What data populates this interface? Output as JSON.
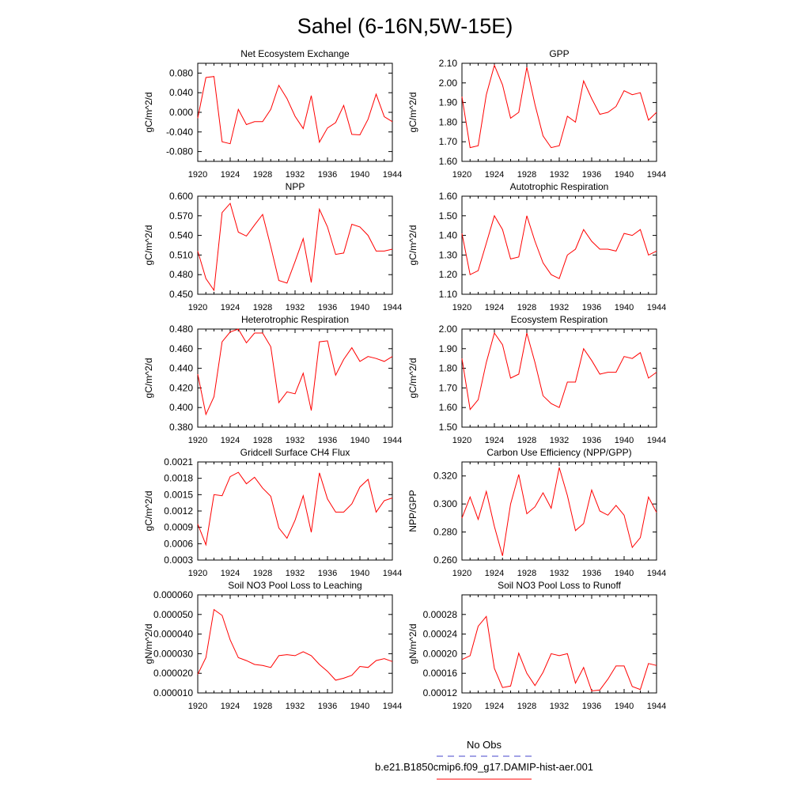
{
  "title": "Sahel (6-16N,5W-15E)",
  "legend": {
    "entries": [
      {
        "label": "No Obs",
        "color": "#4444cc",
        "dash": true
      },
      {
        "label": "b.e21.B1850cmip6.f09_g17.DAMIP-hist-aer.001",
        "color": "#ff0000",
        "dash": false
      }
    ],
    "position": "bottom-center"
  },
  "colors": {
    "series": "#ff0000",
    "axis": "#000000"
  },
  "chart_data": [
    {
      "type": "line",
      "title": "Net Ecosystem Exchange",
      "ylabel": "gC/m^2/d",
      "xlim": [
        1920,
        1944
      ],
      "ylim": [
        -0.1,
        0.1
      ],
      "xticks": [
        "1920",
        "1924",
        "1928",
        "1932",
        "1936",
        "1940",
        "1944"
      ],
      "yticks": [
        "-0.080",
        "-0.040",
        "0.000",
        "0.040",
        "0.080"
      ],
      "x": [
        1920,
        1921,
        1922,
        1923,
        1924,
        1925,
        1926,
        1927,
        1928,
        1929,
        1930,
        1931,
        1932,
        1933,
        1934,
        1935,
        1936,
        1937,
        1938,
        1939,
        1940,
        1941,
        1942,
        1943,
        1944
      ],
      "series": [
        {
          "name": "b.e21.B1850cmip6.f09_g17.DAMIP-hist-aer.001",
          "values": [
            -0.012,
            0.071,
            0.073,
            -0.06,
            -0.064,
            0.006,
            -0.025,
            -0.019,
            -0.019,
            0.006,
            0.055,
            0.028,
            -0.008,
            -0.033,
            0.034,
            -0.061,
            -0.032,
            -0.021,
            0.014,
            -0.045,
            -0.046,
            -0.014,
            0.037,
            -0.009,
            -0.019
          ]
        }
      ]
    },
    {
      "type": "line",
      "title": "GPP",
      "ylabel": "gC/m^2/d",
      "xlim": [
        1920,
        1944
      ],
      "ylim": [
        1.6,
        2.1
      ],
      "xticks": [
        "1920",
        "1924",
        "1928",
        "1932",
        "1936",
        "1940",
        "1944"
      ],
      "yticks": [
        "1.60",
        "1.70",
        "1.80",
        "1.90",
        "2.00",
        "2.10"
      ],
      "x": [
        1920,
        1921,
        1922,
        1923,
        1924,
        1925,
        1926,
        1927,
        1928,
        1929,
        1930,
        1931,
        1932,
        1933,
        1934,
        1935,
        1936,
        1937,
        1938,
        1939,
        1940,
        1941,
        1942,
        1943,
        1944
      ],
      "series": [
        {
          "name": "b.e21.B1850cmip6.f09_g17.DAMIP-hist-aer.001",
          "values": [
            1.93,
            1.67,
            1.68,
            1.94,
            2.09,
            1.99,
            1.82,
            1.85,
            2.08,
            1.89,
            1.73,
            1.67,
            1.68,
            1.83,
            1.8,
            2.01,
            1.92,
            1.84,
            1.85,
            1.88,
            1.96,
            1.94,
            1.95,
            1.81,
            1.85
          ]
        }
      ]
    },
    {
      "type": "line",
      "title": "NPP",
      "ylabel": "gC/m^2/d",
      "xlim": [
        1920,
        1944
      ],
      "ylim": [
        0.45,
        0.6
      ],
      "xticks": [
        "1920",
        "1924",
        "1928",
        "1932",
        "1936",
        "1940",
        "1944"
      ],
      "yticks": [
        "0.450",
        "0.480",
        "0.510",
        "0.540",
        "0.570",
        "0.600"
      ],
      "x": [
        1920,
        1921,
        1922,
        1923,
        1924,
        1925,
        1926,
        1927,
        1928,
        1929,
        1930,
        1931,
        1932,
        1933,
        1934,
        1935,
        1936,
        1937,
        1938,
        1939,
        1940,
        1941,
        1942,
        1943,
        1944
      ],
      "series": [
        {
          "name": "b.e21.B1850cmip6.f09_g17.DAMIP-hist-aer.001",
          "values": [
            0.516,
            0.474,
            0.456,
            0.575,
            0.589,
            0.545,
            0.539,
            0.556,
            0.572,
            0.523,
            0.471,
            0.467,
            0.5,
            0.535,
            0.468,
            0.58,
            0.553,
            0.511,
            0.513,
            0.557,
            0.553,
            0.54,
            0.516,
            0.516,
            0.519
          ]
        }
      ]
    },
    {
      "type": "line",
      "title": "Autotrophic Respiration",
      "ylabel": "gC/m^2/d",
      "xlim": [
        1920,
        1944
      ],
      "ylim": [
        1.1,
        1.6
      ],
      "xticks": [
        "1920",
        "1924",
        "1928",
        "1932",
        "1936",
        "1940",
        "1944"
      ],
      "yticks": [
        "1.10",
        "1.20",
        "1.30",
        "1.40",
        "1.50",
        "1.60"
      ],
      "x": [
        1920,
        1921,
        1922,
        1923,
        1924,
        1925,
        1926,
        1927,
        1928,
        1929,
        1930,
        1931,
        1932,
        1933,
        1934,
        1935,
        1936,
        1937,
        1938,
        1939,
        1940,
        1941,
        1942,
        1943,
        1944
      ],
      "series": [
        {
          "name": "b.e21.B1850cmip6.f09_g17.DAMIP-hist-aer.001",
          "values": [
            1.41,
            1.2,
            1.22,
            1.36,
            1.5,
            1.43,
            1.28,
            1.29,
            1.5,
            1.37,
            1.26,
            1.2,
            1.18,
            1.3,
            1.33,
            1.43,
            1.37,
            1.33,
            1.33,
            1.32,
            1.41,
            1.4,
            1.43,
            1.3,
            1.32
          ]
        }
      ]
    },
    {
      "type": "line",
      "title": "Heterotrophic Respiration",
      "ylabel": "gC/m^2/d",
      "xlim": [
        1920,
        1944
      ],
      "ylim": [
        0.38,
        0.48
      ],
      "xticks": [
        "1920",
        "1924",
        "1928",
        "1932",
        "1936",
        "1940",
        "1944"
      ],
      "yticks": [
        "0.380",
        "0.400",
        "0.420",
        "0.440",
        "0.460",
        "0.480"
      ],
      "x": [
        1920,
        1921,
        1922,
        1923,
        1924,
        1925,
        1926,
        1927,
        1928,
        1929,
        1930,
        1931,
        1932,
        1933,
        1934,
        1935,
        1936,
        1937,
        1938,
        1939,
        1940,
        1941,
        1942,
        1943,
        1944
      ],
      "series": [
        {
          "name": "b.e21.B1850cmip6.f09_g17.DAMIP-hist-aer.001",
          "values": [
            0.434,
            0.393,
            0.411,
            0.467,
            0.477,
            0.48,
            0.466,
            0.476,
            0.476,
            0.462,
            0.405,
            0.416,
            0.414,
            0.435,
            0.397,
            0.467,
            0.468,
            0.433,
            0.449,
            0.461,
            0.447,
            0.452,
            0.45,
            0.447,
            0.452
          ]
        }
      ]
    },
    {
      "type": "line",
      "title": "Ecosystem Respiration",
      "ylabel": "gC/m^2/d",
      "xlim": [
        1920,
        1944
      ],
      "ylim": [
        1.5,
        2.0
      ],
      "xticks": [
        "1920",
        "1924",
        "1928",
        "1932",
        "1936",
        "1940",
        "1944"
      ],
      "yticks": [
        "1.50",
        "1.60",
        "1.70",
        "1.80",
        "1.90",
        "2.00"
      ],
      "x": [
        1920,
        1921,
        1922,
        1923,
        1924,
        1925,
        1926,
        1927,
        1928,
        1929,
        1930,
        1931,
        1932,
        1933,
        1934,
        1935,
        1936,
        1937,
        1938,
        1939,
        1940,
        1941,
        1942,
        1943,
        1944
      ],
      "series": [
        {
          "name": "b.e21.B1850cmip6.f09_g17.DAMIP-hist-aer.001",
          "values": [
            1.85,
            1.59,
            1.64,
            1.83,
            1.98,
            1.92,
            1.75,
            1.77,
            1.98,
            1.83,
            1.66,
            1.62,
            1.6,
            1.73,
            1.73,
            1.9,
            1.84,
            1.77,
            1.78,
            1.78,
            1.86,
            1.85,
            1.88,
            1.75,
            1.78
          ]
        }
      ]
    },
    {
      "type": "line",
      "title": "Gridcell Surface CH4 Flux",
      "ylabel": "gC/m^2/d",
      "xlim": [
        1920,
        1944
      ],
      "ylim": [
        0.0003,
        0.0021
      ],
      "xticks": [
        "1920",
        "1924",
        "1928",
        "1932",
        "1936",
        "1940",
        "1944"
      ],
      "yticks": [
        "0.0003",
        "0.0006",
        "0.0009",
        "0.0012",
        "0.0015",
        "0.0018",
        "0.0021"
      ],
      "x": [
        1920,
        1921,
        1922,
        1923,
        1924,
        1925,
        1926,
        1927,
        1928,
        1929,
        1930,
        1931,
        1932,
        1933,
        1934,
        1935,
        1936,
        1937,
        1938,
        1939,
        1940,
        1941,
        1942,
        1943,
        1944
      ],
      "series": [
        {
          "name": "b.e21.B1850cmip6.f09_g17.DAMIP-hist-aer.001",
          "values": [
            0.00096,
            0.00058,
            0.0015,
            0.00148,
            0.00183,
            0.00191,
            0.0017,
            0.00182,
            0.00162,
            0.00147,
            0.00089,
            0.0007,
            0.00103,
            0.00148,
            0.00081,
            0.0019,
            0.00142,
            0.00118,
            0.00118,
            0.00133,
            0.00164,
            0.00178,
            0.00118,
            0.00139,
            0.00144
          ]
        }
      ]
    },
    {
      "type": "line",
      "title": "Carbon Use Efficiency (NPP/GPP)",
      "ylabel": "NPP/GPP",
      "xlim": [
        1920,
        1944
      ],
      "ylim": [
        0.26,
        0.33
      ],
      "xticks": [
        "1920",
        "1924",
        "1928",
        "1932",
        "1936",
        "1940",
        "1944"
      ],
      "yticks": [
        "0.260",
        "0.280",
        "0.300",
        "0.320"
      ],
      "x": [
        1920,
        1921,
        1922,
        1923,
        1924,
        1925,
        1926,
        1927,
        1928,
        1929,
        1930,
        1931,
        1932,
        1933,
        1934,
        1935,
        1936,
        1937,
        1938,
        1939,
        1940,
        1941,
        1942,
        1943,
        1944
      ],
      "series": [
        {
          "name": "b.e21.B1850cmip6.f09_g17.DAMIP-hist-aer.001",
          "values": [
            0.29,
            0.305,
            0.289,
            0.309,
            0.284,
            0.263,
            0.3,
            0.321,
            0.293,
            0.298,
            0.308,
            0.297,
            0.326,
            0.306,
            0.281,
            0.286,
            0.31,
            0.295,
            0.292,
            0.299,
            0.292,
            0.269,
            0.276,
            0.305,
            0.294
          ]
        }
      ]
    },
    {
      "type": "line",
      "title": "Soil NO3 Pool Loss to Leaching",
      "ylabel": "gN/m^2/d",
      "xlim": [
        1920,
        1944
      ],
      "ylim": [
        1e-05,
        6e-05
      ],
      "xticks": [
        "1920",
        "1924",
        "1928",
        "1932",
        "1936",
        "1940",
        "1944"
      ],
      "yticks": [
        "0.000010",
        "0.000020",
        "0.000030",
        "0.000040",
        "0.000050",
        "0.000060"
      ],
      "x": [
        1920,
        1921,
        1922,
        1923,
        1924,
        1925,
        1926,
        1927,
        1928,
        1929,
        1930,
        1931,
        1932,
        1933,
        1934,
        1935,
        1936,
        1937,
        1938,
        1939,
        1940,
        1941,
        1942,
        1943,
        1944
      ],
      "series": [
        {
          "name": "b.e21.B1850cmip6.f09_g17.DAMIP-hist-aer.001",
          "values": [
            1.95e-05,
            2.8e-05,
            5.25e-05,
            4.95e-05,
            3.7e-05,
            2.8e-05,
            2.65e-05,
            2.45e-05,
            2.4e-05,
            2.3e-05,
            2.9e-05,
            2.95e-05,
            2.9e-05,
            3.1e-05,
            2.9e-05,
            2.45e-05,
            2.1e-05,
            1.65e-05,
            1.75e-05,
            1.9e-05,
            2.35e-05,
            2.3e-05,
            2.65e-05,
            2.75e-05,
            2.6e-05
          ]
        }
      ]
    },
    {
      "type": "line",
      "title": "Soil NO3 Pool Loss to Runoff",
      "ylabel": "gN/m^2/d",
      "xlim": [
        1920,
        1944
      ],
      "ylim": [
        0.00012,
        0.00032
      ],
      "xticks": [
        "1920",
        "1924",
        "1928",
        "1932",
        "1936",
        "1940",
        "1944"
      ],
      "yticks": [
        "0.00012",
        "0.00016",
        "0.00020",
        "0.00024",
        "0.00028"
      ],
      "x": [
        1920,
        1921,
        1922,
        1923,
        1924,
        1925,
        1926,
        1927,
        1928,
        1929,
        1930,
        1931,
        1932,
        1933,
        1934,
        1935,
        1936,
        1937,
        1938,
        1939,
        1940,
        1941,
        1942,
        1943,
        1944
      ],
      "series": [
        {
          "name": "b.e21.B1850cmip6.f09_g17.DAMIP-hist-aer.001",
          "values": [
            0.000188,
            0.000196,
            0.000256,
            0.000276,
            0.00017,
            0.000131,
            0.000134,
            0.000201,
            0.00016,
            0.000135,
            0.000162,
            0.0002,
            0.000196,
            0.0002,
            0.00014,
            0.000172,
            0.000124,
            0.000126,
            0.000148,
            0.000175,
            0.000175,
            0.000133,
            0.000127,
            0.00018,
            0.000176
          ]
        }
      ]
    }
  ]
}
